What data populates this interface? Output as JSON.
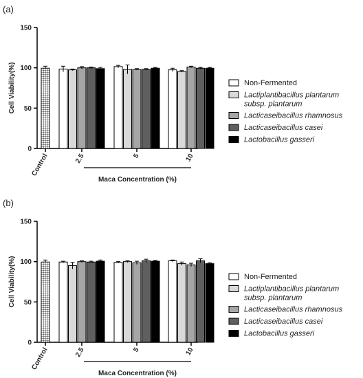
{
  "series_styles": [
    {
      "name": "Non-Fermented",
      "color": "#ffffff"
    },
    {
      "name": "Lactiplantibacillus plantarum subsp. plantarum",
      "color": "#d9d9d9"
    },
    {
      "name": "Lacticaseibacillus rhamnosus",
      "color": "#a6a6a6"
    },
    {
      "name": "Lacticaseibacillus casei",
      "color": "#5f5f5f"
    },
    {
      "name": "Lactobacillus gasseri",
      "color": "#000000"
    }
  ],
  "chart_data": [
    {
      "type": "bar",
      "panel_label": "(a)",
      "ylabel": "Cell Viability(%)",
      "xlabel": "Maca Concentration (%)",
      "ylim": [
        0,
        150
      ],
      "yticks": [
        "0",
        "50",
        "100",
        "150"
      ],
      "control": {
        "label": "Control",
        "value": 99.5,
        "error": 2.5
      },
      "categories": [
        "2.5",
        "5",
        "10"
      ],
      "series": [
        {
          "name": "Non-Fermented",
          "values": [
            98.5,
            101.5,
            97.5
          ],
          "errors": [
            3.5,
            1.5,
            2
          ]
        },
        {
          "name": "Lactiplantibacillus plantarum subsp. plantarum",
          "values": [
            97.5,
            98,
            95.5
          ],
          "errors": [
            1,
            5.5,
            1
          ]
        },
        {
          "name": "Lacticaseibacillus rhamnosus",
          "values": [
            100,
            98,
            101
          ],
          "errors": [
            1.5,
            1,
            1
          ]
        },
        {
          "name": "Lacticaseibacillus casei",
          "values": [
            100,
            98,
            99.5
          ],
          "errors": [
            1,
            1,
            1
          ]
        },
        {
          "name": "Lactobacillus gasseri",
          "values": [
            99,
            99.5,
            99.5
          ],
          "errors": [
            1.5,
            1,
            1
          ]
        }
      ],
      "legend": {
        "entries": [
          {
            "lines": [
              "Non-Fermented"
            ],
            "italic": false
          },
          {
            "lines": [
              "Lactiplantibacillus plantarum",
              "subsp. plantarum"
            ],
            "italic": true
          },
          {
            "lines": [
              "Lacticaseibacillus rhamnosus"
            ],
            "italic": true
          },
          {
            "lines": [
              "Lacticaseibacillus casei"
            ],
            "italic": true
          },
          {
            "lines": [
              "Lactobacillus gasseri"
            ],
            "italic": true
          }
        ]
      }
    },
    {
      "type": "bar",
      "panel_label": "(b)",
      "ylabel": "Cell Viability(%)",
      "xlabel": "Maca Concentration (%)",
      "ylim": [
        0,
        150
      ],
      "yticks": [
        "0",
        "50",
        "100",
        "150"
      ],
      "control": {
        "label": "Control",
        "value": 99.5,
        "error": 2.5
      },
      "categories": [
        "2.5",
        "5",
        "10"
      ],
      "series": [
        {
          "name": "Non-Fermented",
          "values": [
            99.5,
            99,
            101
          ],
          "errors": [
            1,
            1,
            1
          ]
        },
        {
          "name": "Lactiplantibacillus plantarum subsp. plantarum",
          "values": [
            95,
            100,
            97.5
          ],
          "errors": [
            4,
            1,
            2
          ]
        },
        {
          "name": "Lacticaseibacillus rhamnosus",
          "values": [
            100,
            98.5,
            96
          ],
          "errors": [
            1,
            2,
            2
          ]
        },
        {
          "name": "Lacticaseibacillus casei",
          "values": [
            99.5,
            101,
            101
          ],
          "errors": [
            1,
            2,
            2.5
          ]
        },
        {
          "name": "Lactobacillus gasseri",
          "values": [
            100.5,
            100.5,
            97.5
          ],
          "errors": [
            1.5,
            1,
            1
          ]
        }
      ],
      "legend": {
        "entries": [
          {
            "lines": [
              "Non-Fermented"
            ],
            "italic": false
          },
          {
            "lines": [
              "Lactiplantibacillus plantarum",
              "subsp. plantarum"
            ],
            "italic": true
          },
          {
            "lines": [
              "Lacticaseibacillus rhamnosus"
            ],
            "italic": true
          },
          {
            "lines": [
              "Lacticaseibacillus casei"
            ],
            "italic": true
          },
          {
            "lines": [
              "Lactobacillus gasseri"
            ],
            "italic": true
          }
        ]
      }
    }
  ]
}
